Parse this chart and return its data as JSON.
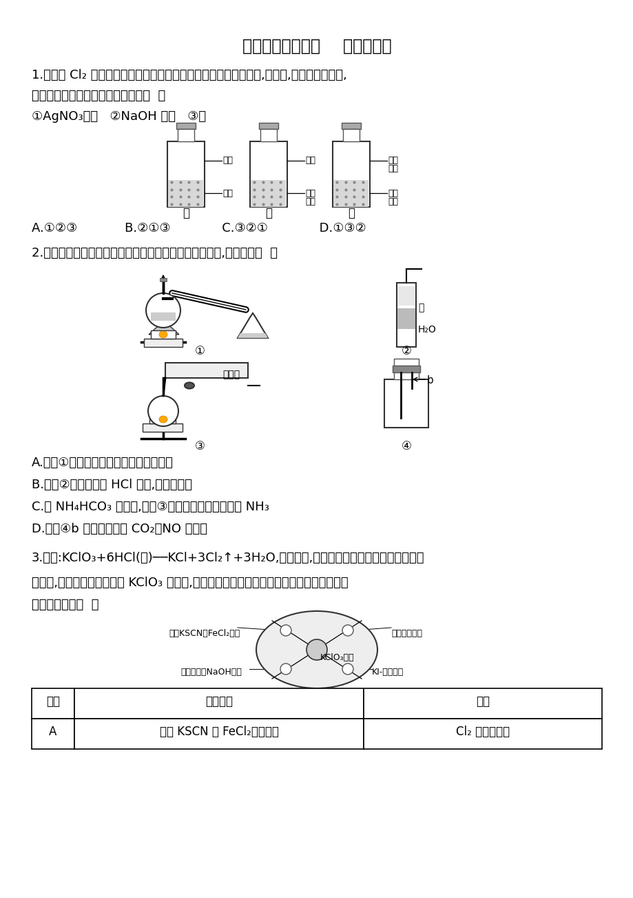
{
  "title": "选择题专项训练五    实验分析型",
  "bg_color": "#ffffff",
  "q1_line1": "1.向盛有 Cl₂ 的三个集气瓶甲、乙、丙中各加入下列液体中的一种,经振荡,现象如下图所示,",
  "q1_line2": "则甲、乙、丙中注入的液体分别是（  ）",
  "q1_reagents": "①AgNO₃溶液   ②NaOH 溶液   ③水",
  "q1_choices": "A.①②③            B.②①③             C.③②①             D.①③②",
  "bottle_labels": [
    "甲",
    "乙",
    "丙"
  ],
  "q2_line1": "2.实验是化学研究的基础。下列关于各实验装置的叙述中,正确的是（  ）",
  "diag2_ben": "苯",
  "diag2_h2o": "H₂O",
  "diag2_jsl": "硹石灸",
  "diag2_b": "b",
  "q2_optA": "A.装置①常用于分离互不相溶液体混合物",
  "q2_optB": "B.装置②可用于吸收 HCl 气体,并防止倒吸",
  "q2_optC": "C.以 NH₄HCO₃ 为原料,装置③可用于实验室制备少量 NH₃",
  "q2_optD": "D.装置④b 口进气可收集 CO₂、NO 等气体",
  "q3_line1": "3.已知:KClO₃+6HCl(浓)──KCl+3Cl₂↑+3H₂O,如图所示,将少量试剂分别放入培养皿中的相",
  "q3_line2": "应位置,实验时将浓盐酸滴在 KClO₃ 晶体上,并用表面皿盖好。下表中由实验现象得出的结论",
  "q3_line3": "完全正确的是（  ）",
  "dish_kscn": "滴有KSCN的FeCl₂溶液",
  "dish_zise": "紫色石蕊溶液",
  "dish_kclo3": "KClO₃晶体",
  "dish_naoh": "滴有酚酞的NaOH溶液",
  "dish_ki": "KI-淀粉溶液",
  "tbl_headers": [
    "选项",
    "实验现象",
    "结论"
  ],
  "tbl_row_A": [
    "A",
    "滴有 KSCN 的 FeCl₂溶液变红",
    "Cl₂ 具有还原性"
  ]
}
